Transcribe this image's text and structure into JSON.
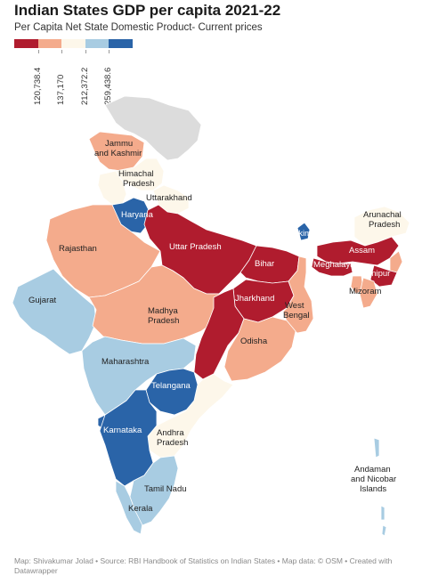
{
  "title": "Indian States GDP per capita 2021-22",
  "subtitle": "Per Capita Net State Domestic Product- Current prices",
  "legend": {
    "colors": [
      "#b01c2e",
      "#f4ab8c",
      "#fdf7ea",
      "#a8cce2",
      "#2a64a8"
    ],
    "thresholds": [
      "120,738.4",
      "137,170",
      "212,372.2",
      "259,438.6"
    ]
  },
  "map": {
    "labels": {
      "jk": "Jammu and Kashmir",
      "hp": "Himachal Pradesh",
      "uk": "Uttarakhand",
      "haryana": "Haryana",
      "rajasthan": "Rajasthan",
      "up": "Uttar Pradesh",
      "bihar": "Bihar",
      "sikkim": "Sikkim",
      "arunachal": "Arunachal Pradesh",
      "assam": "Assam",
      "meghalaya": "Meghalaya",
      "manipur": "Manipur",
      "mizoram": "Mizoram",
      "gujarat": "Gujarat",
      "mp": "Madhya Pradesh",
      "jharkhand": "Jharkhand",
      "wb": "West Bengal",
      "odisha": "Odisha",
      "maharashtra": "Maharashtra",
      "telangana": "Telangana",
      "karnataka": "Karnataka",
      "ap": "Andhra Pradesh",
      "tn": "Tamil Nadu",
      "kerala": "Kerala",
      "andaman": "Andaman and Nicobar Islands"
    }
  },
  "footer": "Map: Shivakumar Jolad • Source: RBI Handbook of Statistics on Indian States • Map data: © OSM • Created with Datawrapper"
}
